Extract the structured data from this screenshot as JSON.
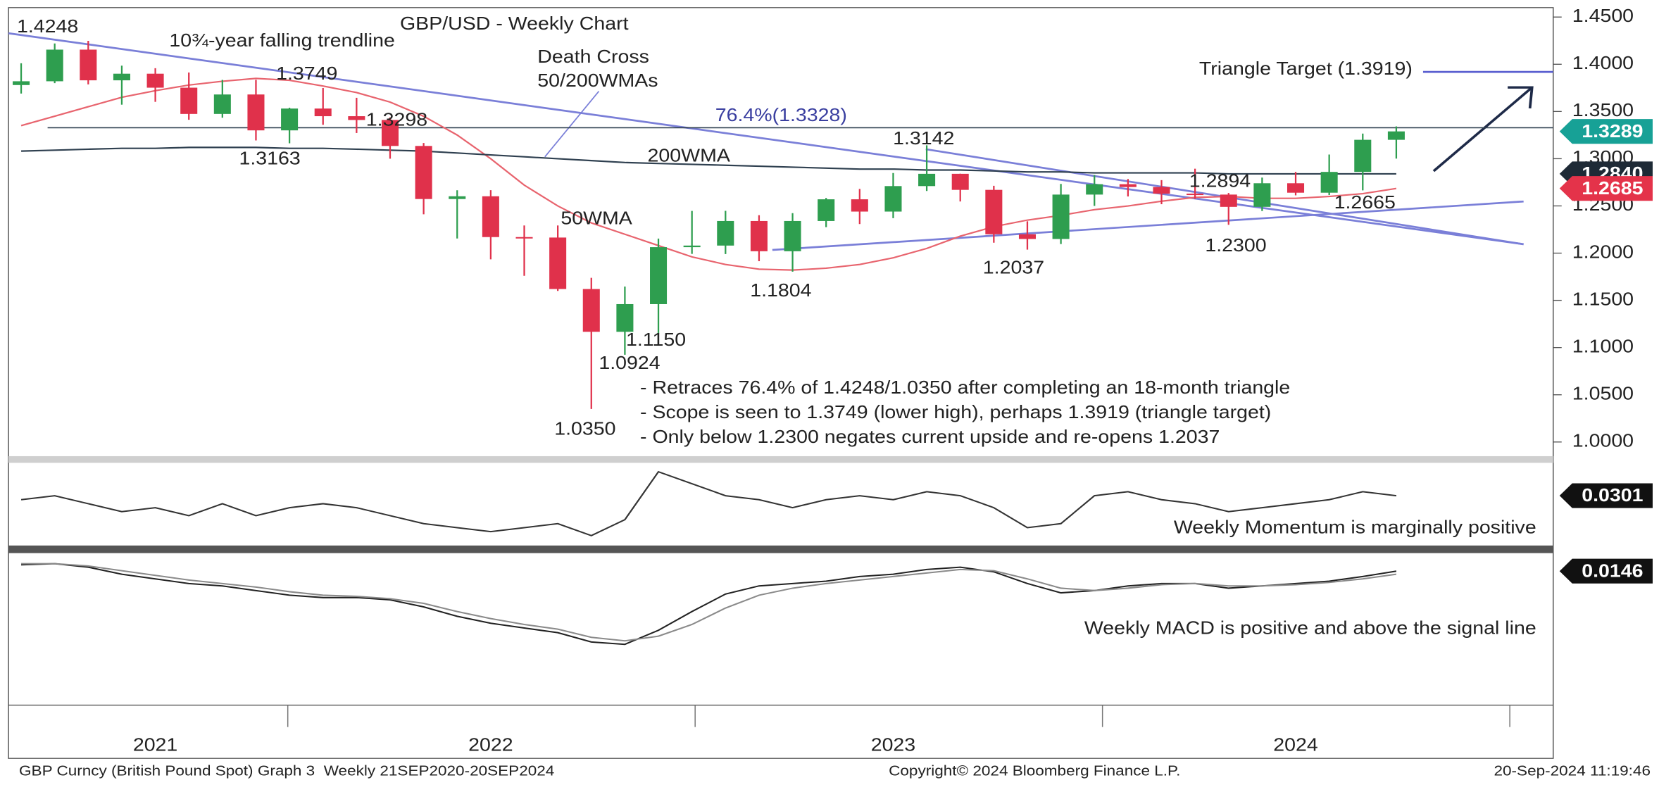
{
  "chart_data": [
    {
      "type": "candlestick",
      "title": "GBP/USD - Weekly Chart",
      "categories": [
        null,
        null,
        null,
        null,
        "2021",
        null,
        null,
        null,
        null,
        null,
        null,
        null,
        null,
        null,
        "2022",
        null,
        null,
        null,
        null,
        null,
        null,
        null,
        null,
        null,
        null,
        null,
        "2023",
        null,
        null,
        null,
        null,
        null,
        null,
        null,
        null,
        null,
        null,
        null,
        "2024",
        null,
        null,
        null
      ],
      "open": [
        1.378,
        1.382,
        1.4155,
        1.383,
        1.39,
        1.3752,
        1.3474,
        1.368,
        1.33,
        1.3531,
        1.345,
        1.341,
        1.3135,
        1.2573,
        1.2602,
        1.217,
        1.2165,
        1.162,
        1.1167,
        1.146,
        1.2063,
        1.208,
        1.234,
        1.202,
        1.234,
        1.257,
        1.244,
        1.271,
        1.284,
        1.267,
        1.22,
        1.215,
        1.262,
        1.273,
        1.27,
        1.263,
        1.262,
        1.249,
        1.274,
        1.264,
        1.286,
        1.32
      ],
      "high": [
        1.401,
        1.422,
        1.4248,
        1.3985,
        1.3958,
        1.3913,
        1.3834,
        1.3835,
        1.354,
        1.3749,
        1.3645,
        1.3438,
        1.3166,
        1.2666,
        1.2667,
        1.2293,
        1.2293,
        1.1738,
        1.1646,
        1.2154,
        1.2447,
        1.2448,
        1.2402,
        1.2423,
        1.2584,
        1.268,
        1.2848,
        1.3142,
        1.2841,
        1.2713,
        1.2337,
        1.2733,
        1.2827,
        1.2785,
        1.2773,
        1.2894,
        1.2637,
        1.28,
        1.286,
        1.3044,
        1.3266,
        1.3342
      ],
      "low": [
        1.369,
        1.38,
        1.3787,
        1.3572,
        1.3602,
        1.3412,
        1.3434,
        1.3193,
        1.3163,
        1.3359,
        1.3272,
        1.3,
        1.2411,
        1.2155,
        1.1934,
        1.176,
        1.16,
        1.035,
        1.0924,
        1.115,
        1.1992,
        1.199,
        1.1915,
        1.1804,
        1.2275,
        1.2308,
        1.237,
        1.2658,
        1.2547,
        1.211,
        1.2037,
        1.2096,
        1.25,
        1.26,
        1.2518,
        1.2575,
        1.23,
        1.2446,
        1.2612,
        1.2615,
        1.2665,
        1.3001
      ],
      "close": [
        1.382,
        1.4155,
        1.383,
        1.39,
        1.3752,
        1.3474,
        1.368,
        1.33,
        1.3531,
        1.345,
        1.341,
        1.3135,
        1.2573,
        1.2602,
        1.217,
        1.2165,
        1.162,
        1.1167,
        1.146,
        1.2063,
        1.208,
        1.234,
        1.202,
        1.234,
        1.257,
        1.244,
        1.271,
        1.284,
        1.267,
        1.22,
        1.215,
        1.262,
        1.273,
        1.27,
        1.263,
        1.262,
        1.249,
        1.274,
        1.264,
        1.286,
        1.32,
        1.3289
      ],
      "up_color": "#2e9e4f",
      "down_color": "#e0314b",
      "ylim": [
        0.987,
        1.46
      ],
      "yticks": [
        {
          "value": 1.0,
          "label": "1.0000"
        },
        {
          "value": 1.05,
          "label": "1.0500"
        },
        {
          "value": 1.1,
          "label": "1.1000"
        },
        {
          "value": 1.15,
          "label": "1.1500"
        },
        {
          "value": 1.2,
          "label": "1.2000"
        },
        {
          "value": 1.25,
          "label": "1.2500"
        },
        {
          "value": 1.3,
          "label": "1.3000"
        },
        {
          "value": 1.35,
          "label": "1.3500"
        },
        {
          "value": 1.4,
          "label": "1.4000"
        },
        {
          "value": 1.45,
          "label": "1.4500"
        }
      ],
      "series": [
        {
          "name": "50WMA",
          "color": "#e8646e",
          "values": [
            1.335,
            1.345,
            1.355,
            1.365,
            1.372,
            1.378,
            1.382,
            1.385,
            1.383,
            1.377,
            1.37,
            1.36,
            1.345,
            1.325,
            1.3,
            1.272,
            1.25,
            1.232,
            1.22,
            1.208,
            1.196,
            1.188,
            1.183,
            1.182,
            1.184,
            1.188,
            1.195,
            1.205,
            1.218,
            1.228,
            1.235,
            1.24,
            1.246,
            1.25,
            1.255,
            1.259,
            1.26,
            1.258,
            1.258,
            1.26,
            1.263,
            1.2685
          ]
        },
        {
          "name": "200WMA",
          "color": "#2f4050",
          "values": [
            1.308,
            1.309,
            1.31,
            1.311,
            1.311,
            1.312,
            1.312,
            1.312,
            1.311,
            1.311,
            1.31,
            1.309,
            1.308,
            1.306,
            1.304,
            1.302,
            1.3,
            1.298,
            1.296,
            1.295,
            1.294,
            1.293,
            1.292,
            1.291,
            1.29,
            1.289,
            1.289,
            1.288,
            1.288,
            1.287,
            1.286,
            1.286,
            1.285,
            1.285,
            1.285,
            1.285,
            1.284,
            1.284,
            1.284,
            1.284,
            1.284,
            1.284
          ]
        }
      ],
      "annotations": [
        "10¾-year falling trendline",
        "Death Cross",
        "50/200WMAs"
      ],
      "levels": [
        {
          "value": 1.3328,
          "label": "76.4%(1.3328)"
        },
        {
          "value": 1.3919,
          "label": "Triangle Target (1.3919)"
        }
      ],
      "price_labels": [
        {
          "value": 1.4248,
          "label": "1.4248"
        },
        {
          "value": 1.3749,
          "label": "1.3749"
        },
        {
          "value": 1.3298,
          "label": "1.3298"
        },
        {
          "value": 1.3163,
          "label": "1.3163"
        },
        {
          "value": 1.3142,
          "label": "1.3142"
        },
        {
          "value": 1.2894,
          "label": "1.2894"
        },
        {
          "value": 1.2665,
          "label": "1.2665"
        },
        {
          "value": 1.2037,
          "label": "1.2037"
        },
        {
          "value": 1.23,
          "label": "1.2300"
        },
        {
          "value": 1.1804,
          "label": "1.1804"
        },
        {
          "value": 1.115,
          "label": "1.1150"
        },
        {
          "value": 1.0924,
          "label": "1.0924"
        },
        {
          "value": 1.035,
          "label": "1.0350"
        }
      ],
      "tags": [
        {
          "value": 1.284,
          "label": "1.2840",
          "color": "#1e2a36"
        },
        {
          "value": 1.3289,
          "label": "1.3289",
          "color": "#17a196"
        },
        {
          "value": 1.2685,
          "label": "1.2685",
          "color": "#e4334a"
        }
      ],
      "notes": [
        "- Retraces 76.4% of 1.4248/1.0350 after completing an 18-month triangle",
        "- Scope is seen to 1.3749 (lower high), perhaps 1.3919 (triangle target)",
        "- Only below 1.2300 negates current upside and re-opens 1.2037"
      ]
    },
    {
      "type": "line",
      "ylim": [
        -0.09,
        0.11
      ],
      "series": [
        {
          "color": "#333333",
          "values": [
            0.02,
            0.03,
            0.01,
            -0.01,
            0.0,
            -0.02,
            0.01,
            -0.02,
            0.0,
            0.01,
            0.0,
            -0.02,
            -0.04,
            -0.05,
            -0.06,
            -0.05,
            -0.04,
            -0.07,
            -0.03,
            0.09,
            0.06,
            0.03,
            0.02,
            0.0,
            0.02,
            0.03,
            0.02,
            0.04,
            0.03,
            0.0,
            -0.05,
            -0.04,
            0.03,
            0.04,
            0.02,
            0.01,
            -0.01,
            0.0,
            0.01,
            0.02,
            0.04,
            0.0301
          ]
        }
      ],
      "annotation": "Weekly Momentum is marginally positive",
      "tag": {
        "value": 0.0301,
        "label": "0.0301",
        "color": "#111111"
      }
    },
    {
      "type": "line",
      "ylim": [
        -0.1,
        0.03
      ],
      "series": [
        {
          "color": "#222222",
          "values": [
            0.02,
            0.021,
            0.018,
            0.012,
            0.008,
            0.004,
            0.002,
            -0.002,
            -0.006,
            -0.008,
            -0.008,
            -0.01,
            -0.016,
            -0.024,
            -0.03,
            -0.034,
            -0.038,
            -0.046,
            -0.048,
            -0.036,
            -0.02,
            -0.005,
            0.002,
            0.004,
            0.006,
            0.01,
            0.012,
            0.016,
            0.018,
            0.014,
            0.004,
            -0.004,
            -0.002,
            0.002,
            0.004,
            0.004,
            0.0,
            0.002,
            0.004,
            0.006,
            0.01,
            0.0146
          ]
        },
        {
          "color": "#8a8a8a",
          "values": [
            0.021,
            0.021,
            0.019,
            0.015,
            0.011,
            0.007,
            0.004,
            0.001,
            -0.003,
            -0.006,
            -0.007,
            -0.009,
            -0.013,
            -0.02,
            -0.026,
            -0.031,
            -0.035,
            -0.042,
            -0.045,
            -0.041,
            -0.031,
            -0.017,
            -0.006,
            0.0,
            0.004,
            0.007,
            0.01,
            0.013,
            0.016,
            0.015,
            0.008,
            0.0,
            -0.002,
            0.0,
            0.003,
            0.004,
            0.002,
            0.002,
            0.003,
            0.005,
            0.008,
            0.012
          ]
        }
      ],
      "annotation": "Weekly MACD is positive and above the signal line",
      "tag": {
        "value": 0.0146,
        "label": "0.0146",
        "color": "#111111"
      }
    }
  ],
  "footer": {
    "left": "GBP Curncy (British Pound Spot) Graph 3  Weekly 21SEP2020-20SEP2024",
    "center": "Copyright© 2024 Bloomberg Finance L.P.",
    "right": "20-Sep-2024 11:19:46"
  }
}
